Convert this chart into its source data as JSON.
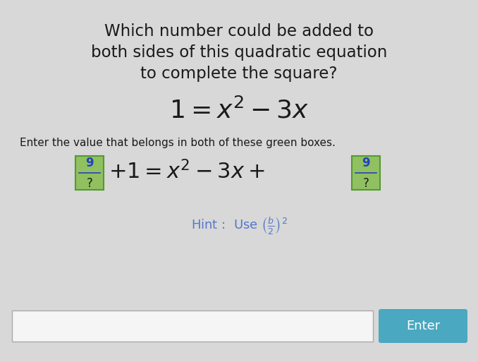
{
  "title_line1": "Which number could be added to",
  "title_line2": "both sides of this quadratic equation",
  "title_line3": "to complete the square?",
  "bg_color": "#d8d8d8",
  "title_color": "#1a1a1a",
  "instruction_color": "#1a1a1a",
  "hint_color": "#5577cc",
  "nine_color": "#2244bb",
  "green_box_facecolor": "#90c060",
  "green_box_edgecolor": "#559933",
  "input_bg": "#f5f5f5",
  "input_edge": "#aaaaaa",
  "enter_bg": "#4aa8c0",
  "enter_text_color": "#ffffff",
  "fig_width": 6.78,
  "fig_height": 5.13,
  "dpi": 100
}
